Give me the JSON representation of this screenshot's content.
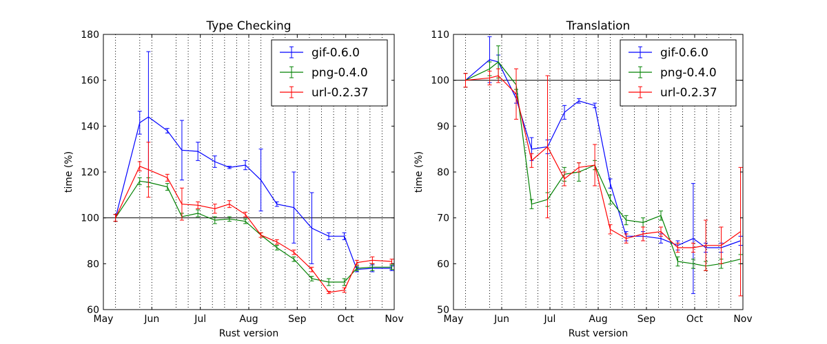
{
  "chart_data": [
    {
      "type": "line",
      "title": "Type Checking",
      "xlabel": "Rust version",
      "ylabel": "time (%)",
      "xlim": [
        0,
        6
      ],
      "ylim": [
        60,
        180
      ],
      "xticks": [
        0,
        1,
        2,
        3,
        4,
        5,
        6
      ],
      "xtick_labels": [
        "May",
        "Jun",
        "Jul",
        "Aug",
        "Sep",
        "Oct",
        "Nov"
      ],
      "yticks": [
        60,
        80,
        100,
        120,
        140,
        160,
        180
      ],
      "baseline": 100,
      "legend": "top-right",
      "grid": "vertical dotted lines at release dates",
      "release_x": [
        0.25,
        0.75,
        1.0,
        1.5,
        1.75,
        2.0,
        2.25,
        2.5,
        2.75,
        3.0,
        3.25,
        3.5,
        3.75,
        4.0,
        4.25,
        4.5,
        4.75,
        5.0,
        5.25,
        5.5,
        5.75
      ],
      "x": [
        0.25,
        0.75,
        0.93,
        1.32,
        1.62,
        1.95,
        2.3,
        2.6,
        2.93,
        3.25,
        3.58,
        3.93,
        4.3,
        4.65,
        4.97,
        5.23,
        5.55,
        5.95
      ],
      "series": [
        {
          "name": "gif-0.6.0",
          "color": "#0000ff",
          "values": [
            100,
            141.5,
            144,
            138,
            129.5,
            129,
            124.5,
            122,
            123,
            116.5,
            106,
            104.5,
            95.5,
            92,
            92,
            77.5,
            78,
            78
          ],
          "err": [
            1.5,
            5,
            28.5,
            1,
            13,
            4,
            2.5,
            0.5,
            2,
            13.5,
            1,
            15.5,
            15.5,
            1.5,
            1.5,
            1,
            1.5,
            1
          ]
        },
        {
          "name": "png-0.4.0",
          "color": "#008000",
          "values": [
            100,
            116,
            115.5,
            113.5,
            100.5,
            102,
            99,
            99.5,
            98.5,
            92.5,
            87,
            82,
            73.5,
            72,
            72,
            78,
            78.5,
            78.5
          ],
          "err": [
            1.5,
            1.5,
            2,
            1.5,
            1.5,
            1.5,
            1.5,
            1,
            1,
            1,
            1,
            1,
            1,
            1.5,
            1.5,
            1,
            1.5,
            1
          ]
        },
        {
          "name": "url-0.2.37",
          "color": "#ff0000",
          "values": [
            100,
            122.5,
            121,
            117.5,
            106,
            105.5,
            104,
            106,
            101.5,
            92.5,
            89.5,
            85,
            77.5,
            67.5,
            68.5,
            80.5,
            81.5,
            81
          ],
          "err": [
            1.5,
            2,
            12,
            1.5,
            7,
            1.5,
            2,
            1.5,
            1,
            1,
            1,
            1,
            1,
            0.5,
            1,
            1,
            1.5,
            1
          ]
        }
      ]
    },
    {
      "type": "line",
      "title": "Translation",
      "xlabel": "Rust version",
      "ylabel": "time (%)",
      "xlim": [
        0,
        6
      ],
      "ylim": [
        50,
        110
      ],
      "xticks": [
        0,
        1,
        2,
        3,
        4,
        5,
        6
      ],
      "xtick_labels": [
        "May",
        "Jun",
        "Jul",
        "Aug",
        "Sep",
        "Oct",
        "Nov"
      ],
      "yticks": [
        50,
        60,
        70,
        80,
        90,
        100,
        110
      ],
      "baseline": 100,
      "legend": "top-right",
      "grid": "vertical dotted lines at release dates",
      "release_x": [
        0.25,
        0.75,
        1.0,
        1.5,
        1.75,
        2.0,
        2.25,
        2.5,
        2.75,
        3.0,
        3.25,
        3.5,
        3.75,
        4.0,
        4.25,
        4.5,
        4.75,
        5.0,
        5.25,
        5.5,
        5.75
      ],
      "x": [
        0.25,
        0.75,
        0.93,
        1.3,
        1.62,
        1.95,
        2.3,
        2.6,
        2.93,
        3.25,
        3.58,
        3.93,
        4.3,
        4.65,
        4.97,
        5.23,
        5.55,
        5.95
      ],
      "series": [
        {
          "name": "gif-0.6.0",
          "color": "#0000ff",
          "values": [
            100,
            104.5,
            104,
            96,
            85,
            85.5,
            93,
            95.5,
            94.5,
            77.5,
            66,
            66,
            65.5,
            64,
            65.5,
            63.5,
            63.5,
            65
          ],
          "err": [
            1.5,
            5,
            1.5,
            1,
            2.5,
            1.5,
            1.5,
            0.5,
            0.5,
            1,
            1,
            1,
            1,
            1,
            12,
            1,
            1,
            1
          ]
        },
        {
          "name": "png-0.4.0",
          "color": "#008000",
          "values": [
            100,
            102.5,
            104,
            99,
            73,
            74,
            79.5,
            80,
            81.5,
            74,
            69.5,
            69,
            70.5,
            60.5,
            60,
            59.5,
            60,
            61
          ],
          "err": [
            1.5,
            1.5,
            3.5,
            1,
            1,
            1.5,
            1.5,
            2,
            1,
            1,
            1,
            1,
            1,
            1,
            1,
            1,
            1,
            1
          ]
        },
        {
          "name": "url-0.2.37",
          "color": "#ff0000",
          "values": [
            100,
            100.5,
            101,
            97,
            82.5,
            85.5,
            78.5,
            81,
            81.5,
            67.5,
            65.5,
            66.5,
            67,
            63.5,
            63.5,
            64,
            64,
            67
          ],
          "err": [
            1.5,
            1.5,
            1.5,
            5.5,
            1.5,
            15.5,
            1.5,
            1,
            4.5,
            1,
            1,
            1.5,
            1,
            1,
            1,
            5.5,
            4,
            14
          ]
        }
      ]
    }
  ]
}
